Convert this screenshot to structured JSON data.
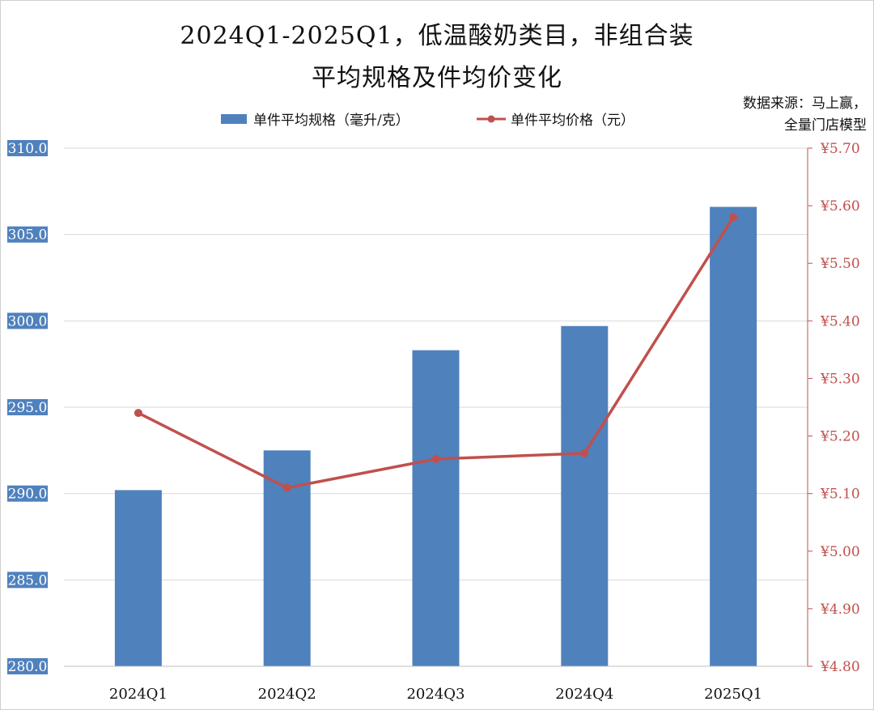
{
  "title_line1": "2024Q1-2025Q1，低温酸奶类目，非组合装",
  "title_line2": "平均规格及件均价变化",
  "source_line1": "数据来源：马上赢，",
  "source_line2": "全量门店模型",
  "colors": {
    "bar": "#4f81bd",
    "line": "#c0504d",
    "grid": "#d9d9d9",
    "left_tick_bg": "#4f81bd",
    "right_tick": "#c0504d"
  },
  "chart_data": {
    "type": "bar",
    "categories": [
      "2024Q1",
      "2024Q2",
      "2024Q3",
      "2024Q4",
      "2025Q1"
    ],
    "series": [
      {
        "name": "单件平均规格（毫升/克）",
        "type": "bar",
        "axis": "left",
        "values": [
          290.2,
          292.5,
          298.3,
          299.7,
          306.6
        ]
      },
      {
        "name": "单件平均价格（元）",
        "type": "line",
        "axis": "right",
        "values": [
          5.24,
          5.11,
          5.16,
          5.17,
          5.58
        ]
      }
    ],
    "y_left": {
      "range": [
        280,
        310
      ],
      "ticks": [
        "280.0",
        "285.0",
        "290.0",
        "295.0",
        "300.0",
        "305.0",
        "310.0"
      ]
    },
    "y_right": {
      "range": [
        4.8,
        5.7
      ],
      "ticks": [
        "¥4.80",
        "¥4.90",
        "¥5.00",
        "¥5.10",
        "¥5.20",
        "¥5.30",
        "¥5.40",
        "¥5.50",
        "¥5.60",
        "¥5.70"
      ]
    },
    "grid": true,
    "legend_position": "top"
  }
}
